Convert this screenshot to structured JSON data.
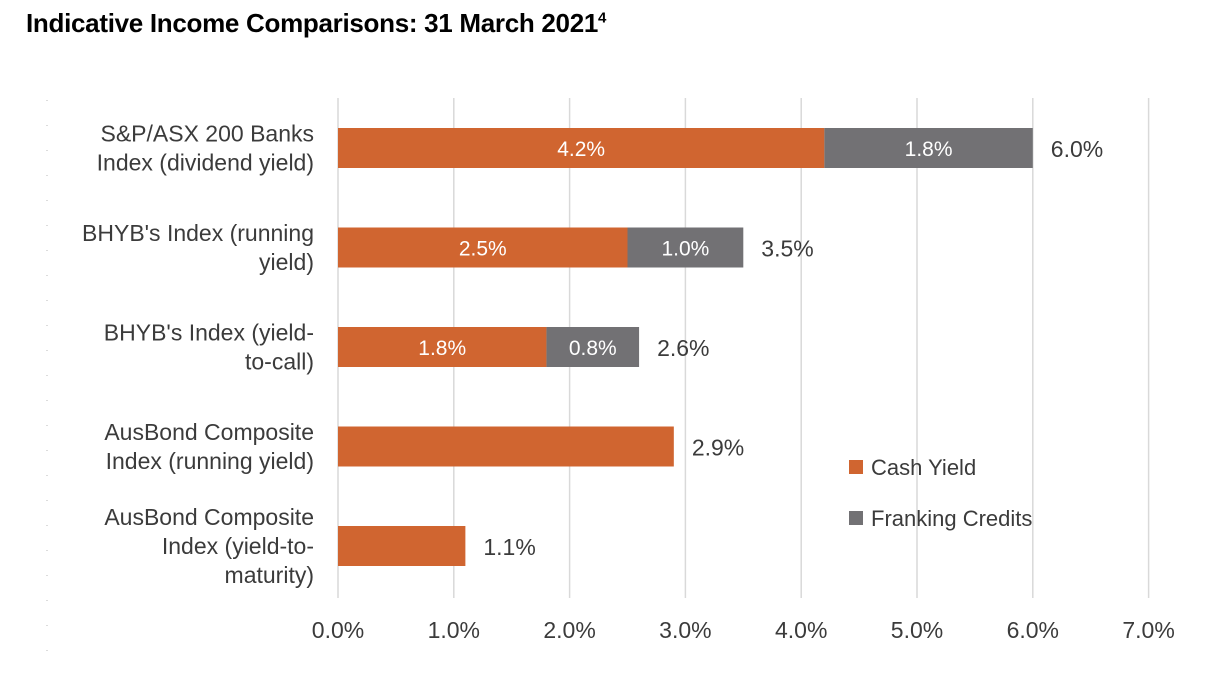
{
  "title": "Indicative Income Comparisons: 31 March 2021",
  "title_superscript": "4",
  "chart_data": {
    "type": "bar",
    "orientation": "horizontal",
    "stacked": true,
    "categories": [
      [
        "S&P/ASX 200 Banks",
        "Index (dividend yield)"
      ],
      [
        "BHYB's Index (running",
        "yield)"
      ],
      [
        "BHYB's Index (yield-",
        "to-call)"
      ],
      [
        "AusBond Composite",
        "Index (running yield)"
      ],
      [
        "AusBond Composite",
        "Index (yield-to-",
        "maturity)"
      ]
    ],
    "series": [
      {
        "name": "Cash Yield",
        "values": [
          4.2,
          2.5,
          1.8,
          2.9,
          1.1
        ],
        "labels": [
          "4.2%",
          "2.5%",
          "1.8%",
          null,
          null
        ]
      },
      {
        "name": "Franking Credits",
        "values": [
          1.8,
          1.0,
          0.8,
          0,
          0
        ],
        "labels": [
          "1.8%",
          "1.0%",
          "0.8%",
          null,
          null
        ]
      }
    ],
    "totals": [
      "6.0%",
      "3.5%",
      "2.6%",
      "2.9%",
      "1.1%"
    ],
    "xlim": [
      0,
      7
    ],
    "xticks": [
      "0.0%",
      "1.0%",
      "2.0%",
      "3.0%",
      "4.0%",
      "5.0%",
      "6.0%",
      "7.0%"
    ],
    "grid": "vertical",
    "legend": "right",
    "colors": {
      "Cash Yield": "#d06530",
      "Franking Credits": "#727174",
      "grid": "#d9d9d9"
    }
  }
}
